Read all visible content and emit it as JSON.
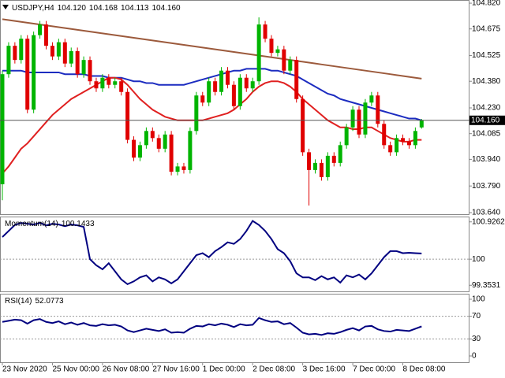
{
  "chart_data": [
    {
      "type": "candlestick",
      "symbol": "USDJPY,H4",
      "header_ohlc": [
        {
          "value": 104.12,
          "label": "104.120"
        },
        {
          "value": 104.168,
          "label": "104.168"
        },
        {
          "value": 104.113,
          "label": "104.113"
        },
        {
          "value": 104.16,
          "label": "104.160"
        }
      ],
      "categories": [
        "23 Nov 2020",
        null,
        null,
        null,
        null,
        null,
        null,
        null,
        "25 Nov 00:00",
        null,
        null,
        null,
        null,
        null,
        null,
        null,
        "26 Nov 08:00",
        null,
        null,
        null,
        null,
        null,
        null,
        null,
        "27 Nov 16:00",
        null,
        null,
        null,
        null,
        null,
        null,
        null,
        "1 Dec 00:00",
        null,
        null,
        null,
        null,
        null,
        null,
        null,
        "2 Dec 08:00",
        null,
        null,
        null,
        null,
        null,
        null,
        null,
        "3 Dec 16:00",
        null,
        null,
        null,
        null,
        null,
        null,
        null,
        "7 Dec 00:00",
        null,
        null,
        null,
        null,
        null,
        null,
        null,
        "8 Dec 08:00",
        null,
        null,
        null
      ],
      "open": [
        103.8,
        104.42,
        104.58,
        104.5,
        104.62,
        104.22,
        104.64,
        104.7,
        104.58,
        104.52,
        104.6,
        104.48,
        104.55,
        104.42,
        104.5,
        104.38,
        104.34,
        104.4,
        104.36,
        104.38,
        104.32,
        104.05,
        103.95,
        104.02,
        104.1,
        104.06,
        104.0,
        104.08,
        103.87,
        103.9,
        103.88,
        104.1,
        104.3,
        104.26,
        104.38,
        104.32,
        104.44,
        104.36,
        104.24,
        104.4,
        104.34,
        104.38,
        104.7,
        104.62,
        104.54,
        104.56,
        104.44,
        104.5,
        104.28,
        103.98,
        103.88,
        103.92,
        103.84,
        103.96,
        103.92,
        104.02,
        104.12,
        104.22,
        104.08,
        104.26,
        104.3,
        104.14,
        104.02,
        103.98,
        104.06,
        104.04,
        104.02,
        104.12
      ],
      "high": [
        104.44,
        104.6,
        104.6,
        104.64,
        104.64,
        104.66,
        104.72,
        104.72,
        104.6,
        104.62,
        104.62,
        104.57,
        104.57,
        104.52,
        104.52,
        104.4,
        104.42,
        104.42,
        104.4,
        104.4,
        104.34,
        104.07,
        104.04,
        104.12,
        104.12,
        104.08,
        104.1,
        104.1,
        103.92,
        103.92,
        104.12,
        104.32,
        104.32,
        104.4,
        104.4,
        104.46,
        104.46,
        104.38,
        104.42,
        104.42,
        104.4,
        104.74,
        104.72,
        104.64,
        104.58,
        104.58,
        104.52,
        104.52,
        104.3,
        104.0,
        103.94,
        103.94,
        103.98,
        103.98,
        104.04,
        104.14,
        104.24,
        104.24,
        104.28,
        104.32,
        104.32,
        104.16,
        104.04,
        104.08,
        104.08,
        104.06,
        104.12,
        104.168
      ],
      "low": [
        103.71,
        104.4,
        104.48,
        104.48,
        104.2,
        104.2,
        104.62,
        104.56,
        104.5,
        104.5,
        104.46,
        104.46,
        104.4,
        104.4,
        104.36,
        104.32,
        104.32,
        104.34,
        104.34,
        104.3,
        104.03,
        103.93,
        103.93,
        104.0,
        104.04,
        103.98,
        103.98,
        103.85,
        103.85,
        103.86,
        103.86,
        104.08,
        104.24,
        104.24,
        104.3,
        104.3,
        104.34,
        104.22,
        104.22,
        104.32,
        104.32,
        104.36,
        104.6,
        104.52,
        104.52,
        104.42,
        104.42,
        104.26,
        103.96,
        103.68,
        103.86,
        103.82,
        103.82,
        103.9,
        103.9,
        104.0,
        104.1,
        104.06,
        104.06,
        104.24,
        104.12,
        104.0,
        103.96,
        103.96,
        104.02,
        104.0,
        104.0,
        104.113
      ],
      "close": [
        104.42,
        104.58,
        104.5,
        104.62,
        104.22,
        104.64,
        104.7,
        104.58,
        104.52,
        104.6,
        104.48,
        104.55,
        104.42,
        104.5,
        104.38,
        104.34,
        104.4,
        104.36,
        104.38,
        104.32,
        104.05,
        103.95,
        104.02,
        104.1,
        104.06,
        104.0,
        104.08,
        103.87,
        103.9,
        103.88,
        104.1,
        104.3,
        104.26,
        104.38,
        104.32,
        104.44,
        104.36,
        104.24,
        104.4,
        104.34,
        104.38,
        104.7,
        104.62,
        104.54,
        104.56,
        104.44,
        104.5,
        104.28,
        103.98,
        103.88,
        103.92,
        103.84,
        103.96,
        103.92,
        104.02,
        104.12,
        104.22,
        104.08,
        104.26,
        104.3,
        104.14,
        104.02,
        103.98,
        104.06,
        104.04,
        104.02,
        104.1,
        104.16
      ],
      "up_color": "#00b400",
      "down_color": "#e00000",
      "series": [
        {
          "color": "#9c5a3c",
          "values": [
            104.73,
            104.725,
            104.72,
            104.715,
            104.71,
            104.705,
            104.7,
            104.695,
            104.69,
            104.685,
            104.68,
            104.675,
            104.67,
            104.665,
            104.66,
            104.655,
            104.65,
            104.645,
            104.64,
            104.635,
            104.63,
            104.625,
            104.62,
            104.615,
            104.61,
            104.605,
            104.6,
            104.595,
            104.59,
            104.585,
            104.58,
            104.575,
            104.57,
            104.565,
            104.56,
            104.555,
            104.55,
            104.545,
            104.54,
            104.535,
            104.53,
            104.525,
            104.52,
            104.515,
            104.51,
            104.505,
            104.5,
            104.495,
            104.49,
            104.485,
            104.48,
            104.475,
            104.47,
            104.465,
            104.46,
            104.455,
            104.45,
            104.445,
            104.44,
            104.435,
            104.43,
            104.425,
            104.42,
            104.415,
            104.41,
            104.405,
            104.4,
            104.395
          ]
        },
        {
          "color": "#1c2cc0",
          "values": [
            104.44,
            104.44,
            104.44,
            104.44,
            104.43,
            104.43,
            104.43,
            104.43,
            104.43,
            104.43,
            104.42,
            104.42,
            104.42,
            104.42,
            104.41,
            104.41,
            104.41,
            104.4,
            104.4,
            104.4,
            104.39,
            104.38,
            104.38,
            104.37,
            104.37,
            104.36,
            104.36,
            104.36,
            104.36,
            104.36,
            104.37,
            104.38,
            104.39,
            104.4,
            104.41,
            104.42,
            104.43,
            104.44,
            104.44,
            104.45,
            104.45,
            104.45,
            104.45,
            104.44,
            104.44,
            104.43,
            104.42,
            104.41,
            104.39,
            104.37,
            104.35,
            104.33,
            104.31,
            104.3,
            104.28,
            104.27,
            104.26,
            104.25,
            104.24,
            104.23,
            104.22,
            104.21,
            104.2,
            104.19,
            104.18,
            104.17,
            104.17,
            104.16
          ]
        },
        {
          "color": "#e02020",
          "values": [
            103.86,
            103.9,
            103.95,
            104.0,
            104.03,
            104.07,
            104.11,
            104.15,
            104.19,
            104.22,
            104.25,
            104.28,
            104.3,
            104.32,
            104.34,
            104.36,
            104.38,
            104.4,
            104.4,
            104.39,
            104.36,
            104.32,
            104.28,
            104.25,
            104.22,
            104.2,
            104.18,
            104.17,
            104.16,
            104.16,
            104.16,
            104.16,
            104.16,
            104.17,
            104.18,
            104.19,
            104.2,
            104.22,
            104.25,
            104.28,
            104.32,
            104.35,
            104.37,
            104.38,
            104.38,
            104.37,
            104.35,
            104.32,
            104.28,
            104.25,
            104.22,
            104.19,
            104.16,
            104.14,
            104.12,
            104.12,
            104.11,
            104.11,
            104.12,
            104.12,
            104.1,
            104.08,
            104.06,
            104.05,
            104.04,
            104.04,
            104.05,
            104.05
          ]
        }
      ],
      "last_price": {
        "value": 104.16,
        "label": "104.160"
      },
      "ylim": [
        103.631,
        104.838
      ],
      "yticks": [
        {
          "value": 104.82,
          "label": "104.820"
        },
        104.675,
        104.525,
        {
          "value": 104.38,
          "label": "104.380"
        },
        {
          "value": 104.23,
          "label": "104.230"
        },
        104.085,
        {
          "value": 103.94,
          "label": "103.940"
        },
        {
          "value": 103.79,
          "label": "103.790"
        },
        {
          "value": 103.64,
          "label": "103.640"
        }
      ]
    },
    {
      "type": "line",
      "title": "Momentum(14)",
      "series": [
        {
          "color": "#000080",
          "values": [
            100.55,
            100.7,
            100.85,
            100.9,
            100.88,
            100.86,
            100.9,
            100.84,
            100.88,
            100.86,
            100.82,
            100.86,
            100.84,
            100.8,
            100.0,
            99.85,
            99.75,
            99.9,
            99.7,
            99.5,
            99.38,
            99.45,
            99.55,
            99.6,
            99.45,
            99.55,
            99.5,
            99.4,
            99.5,
            99.7,
            99.9,
            100.1,
            100.15,
            100.05,
            100.2,
            100.3,
            100.42,
            100.38,
            100.5,
            100.7,
            100.95,
            100.85,
            100.7,
            100.5,
            100.25,
            100.15,
            99.95,
            99.65,
            99.55,
            99.55,
            99.48,
            99.58,
            99.5,
            99.55,
            99.42,
            99.6,
            99.55,
            99.62,
            99.5,
            99.65,
            99.85,
            100.05,
            100.2,
            100.2,
            100.15,
            100.16,
            100.15,
            100.1433
          ]
        }
      ],
      "levels": [
        100
      ],
      "ylim": [
        99.202,
        101.058
      ],
      "yticks": [
        100.9262,
        100,
        99.3531
      ]
    },
    {
      "type": "line",
      "title": "RSI(14)",
      "series": [
        {
          "color": "#000080",
          "values": [
            60,
            62,
            64,
            63,
            57,
            63,
            65,
            60,
            58,
            61,
            56,
            59,
            55,
            58,
            54,
            53,
            56,
            54,
            55,
            52,
            45,
            42,
            45,
            48,
            46,
            44,
            47,
            41,
            42,
            41,
            48,
            53,
            52,
            56,
            54,
            57,
            55,
            51,
            56,
            54,
            55,
            67,
            63,
            60,
            61,
            56,
            58,
            50,
            41,
            38,
            39,
            37,
            40,
            39,
            42,
            46,
            49,
            45,
            52,
            53,
            47,
            44,
            43,
            46,
            45,
            44,
            48,
            52.0773
          ]
        }
      ],
      "levels": [
        70,
        30
      ],
      "ylim": [
        -11.1,
        109.7
      ],
      "yticks": [
        100,
        70,
        30,
        0
      ]
    }
  ]
}
